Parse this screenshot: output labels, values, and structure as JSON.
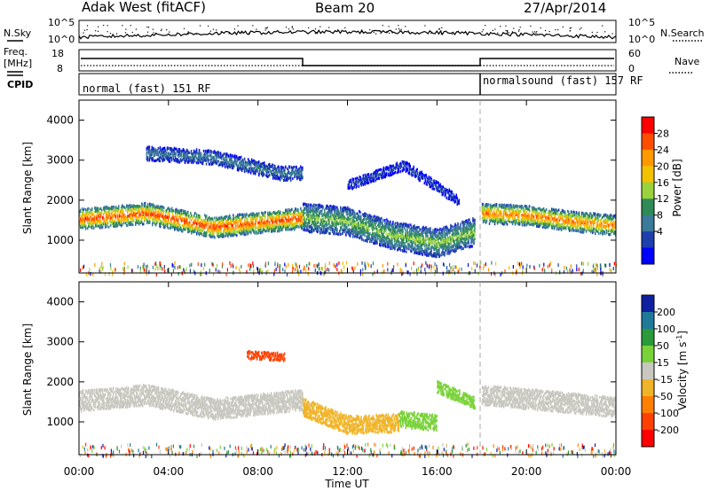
{
  "header": {
    "station": "Adak West (fitACF)",
    "beam": "Beam 20",
    "date": "27/Apr/2014"
  },
  "top_panels": {
    "nsky_label": "N.Sky",
    "nsky_ticks": [
      "10^5",
      "10^0"
    ],
    "nsearch_label": "N.Search",
    "nsearch_ticks": [
      "10^5",
      "10^0"
    ],
    "freq_label": "Freq.",
    "freq_unit": "[MHz]",
    "freq_ticks": [
      "18",
      "8"
    ],
    "nave_label": "Nave",
    "nave_ticks": [
      "60",
      "0"
    ],
    "cpid_label": "CPID",
    "cpid_segments": [
      {
        "text": "normal (fast) 151 RF",
        "start_h": 0,
        "end_h": 18
      },
      {
        "text": "normalsound (fast) 157 RF",
        "start_h": 18,
        "end_h": 24
      }
    ]
  },
  "colorbars": {
    "power": {
      "label": "Power [dB]",
      "ticks": [
        "28",
        "24",
        "20",
        "16",
        "12",
        "8",
        "4"
      ],
      "colors": [
        "#ff0000",
        "#ff4d00",
        "#ff9900",
        "#f2c200",
        "#9ad13d",
        "#2e8b57",
        "#3a7a9a",
        "#1f3fae",
        "#0000ff"
      ]
    },
    "velocity": {
      "label": "Velocity [m s",
      "label_sup": "-1",
      "label_close": "]",
      "ticks": [
        "200",
        "100",
        "50",
        "15",
        "-15",
        "-50",
        "-100",
        "-200"
      ],
      "colors": [
        "#1020a0",
        "#1f7a9a",
        "#2a9a3a",
        "#7ad23a",
        "#c8c8c0",
        "#f0b428",
        "#ff8000",
        "#ff4000",
        "#ff0000"
      ]
    }
  },
  "chart_data": [
    {
      "type": "heatmap",
      "name": "power",
      "ylabel": "Slant Range [km]",
      "yticks": [
        1000,
        2000,
        3000,
        4000
      ],
      "ylim": [
        180,
        4500
      ],
      "xlim": [
        0,
        24
      ],
      "xticks": [
        "00:00",
        "04:00",
        "08:00",
        "12:00",
        "16:00",
        "20:00",
        "00:00"
      ],
      "scatter_bands": [
        {
          "t0": 0,
          "t1": 10,
          "center": [
            [
              0,
              1550
            ],
            [
              3,
              1700
            ],
            [
              6,
              1350
            ],
            [
              10,
              1580
            ]
          ],
          "width": 520,
          "peak_db": 28
        },
        {
          "t0": 10,
          "t1": 17.7,
          "center": [
            [
              10,
              1600
            ],
            [
              12,
              1500
            ],
            [
              14,
              1150
            ],
            [
              16,
              950
            ],
            [
              17.7,
              1250
            ]
          ],
          "width": 700,
          "peak_db": 16
        },
        {
          "t0": 18,
          "t1": 24,
          "center": [
            [
              18,
              1700
            ],
            [
              20,
              1650
            ],
            [
              22,
              1500
            ],
            [
              24,
              1400
            ]
          ],
          "width": 500,
          "peak_db": 26
        },
        {
          "t0": 3,
          "t1": 10,
          "center": [
            [
              3,
              3200
            ],
            [
              6,
              3100
            ],
            [
              9,
              2700
            ]
          ],
          "width": 350,
          "peak_db": 10
        },
        {
          "t0": 12,
          "t1": 17,
          "center": [
            [
              12,
              2400
            ],
            [
              14.5,
              2900
            ],
            [
              17,
              2000
            ]
          ],
          "width": 250,
          "peak_db": 6
        }
      ]
    },
    {
      "type": "heatmap",
      "name": "velocity",
      "ylabel": "Slant Range [km]",
      "yticks": [
        1000,
        2000,
        3000,
        4000
      ],
      "ylim": [
        180,
        4500
      ],
      "xlim": [
        0,
        24
      ],
      "xticks": [
        "00:00",
        "04:00",
        "08:00",
        "12:00",
        "16:00",
        "20:00",
        "00:00"
      ],
      "xlabel": "Time UT",
      "scatter_bands": [
        {
          "t0": 0,
          "t1": 10,
          "center": [
            [
              0,
              1550
            ],
            [
              3,
              1700
            ],
            [
              6,
              1350
            ],
            [
              10,
              1580
            ]
          ],
          "width": 520,
          "velocity": 0
        },
        {
          "t0": 10,
          "t1": 14.3,
          "center": [
            [
              10,
              1400
            ],
            [
              12,
              950
            ],
            [
              14.3,
              1000
            ]
          ],
          "width": 450,
          "velocity": -40
        },
        {
          "t0": 14.3,
          "t1": 16,
          "center": [
            [
              14.3,
              1100
            ],
            [
              16,
              1000
            ]
          ],
          "width": 400,
          "velocity": 30
        },
        {
          "t0": 16,
          "t1": 17.7,
          "center": [
            [
              16,
              1900
            ],
            [
              17.7,
              1500
            ]
          ],
          "width": 300,
          "velocity": 40
        },
        {
          "t0": 18,
          "t1": 24,
          "center": [
            [
              18,
              1700
            ],
            [
              22,
              1500
            ],
            [
              24,
              1400
            ]
          ],
          "width": 500,
          "velocity": 0
        },
        {
          "t0": 7.5,
          "t1": 9.2,
          "center": [
            [
              7.5,
              2700
            ],
            [
              9.2,
              2650
            ]
          ],
          "width": 200,
          "velocity": -150
        }
      ]
    }
  ]
}
